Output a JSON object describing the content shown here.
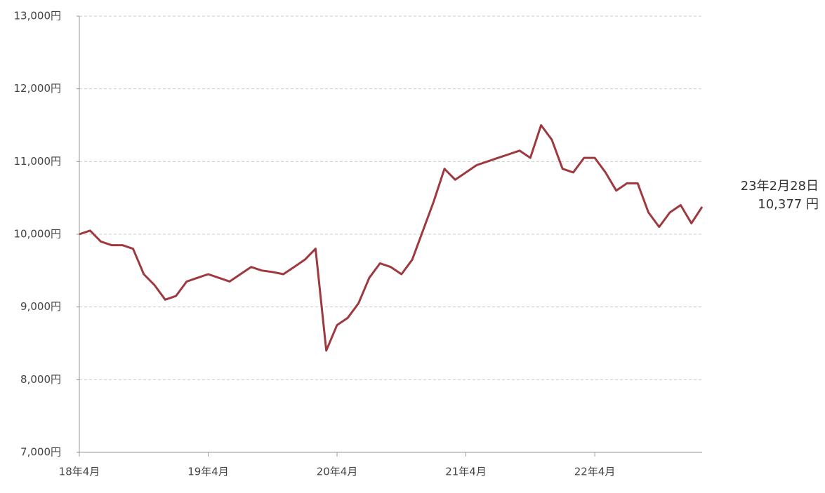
{
  "chart_data": {
    "type": "line",
    "categories": [
      "18年4月",
      null,
      null,
      null,
      null,
      null,
      null,
      null,
      null,
      null,
      null,
      null,
      "19年4月",
      null,
      null,
      null,
      null,
      null,
      null,
      null,
      null,
      null,
      null,
      null,
      "20年4月",
      null,
      null,
      null,
      null,
      null,
      null,
      null,
      null,
      null,
      null,
      null,
      "21年4月",
      null,
      null,
      null,
      null,
      null,
      null,
      null,
      null,
      null,
      null,
      null,
      "22年4月",
      null,
      null,
      null,
      null,
      null,
      null,
      null,
      null,
      null,
      null
    ],
    "values": [
      10000,
      10050,
      9900,
      9850,
      9850,
      9800,
      9450,
      9300,
      9100,
      9150,
      9350,
      9400,
      9450,
      9400,
      9350,
      9450,
      9550,
      9500,
      9480,
      9450,
      9550,
      9650,
      9800,
      8400,
      8750,
      8850,
      9050,
      9400,
      9600,
      9550,
      9450,
      9650,
      10050,
      10450,
      10900,
      10750,
      10850,
      10950,
      11000,
      11050,
      11100,
      11150,
      11050,
      11500,
      11300,
      10900,
      10850,
      11050,
      11050,
      10850,
      10600,
      10700,
      10700,
      10300,
      10100,
      10300,
      10400,
      10150,
      10377
    ],
    "value_labels": [
      null,
      null,
      null,
      null,
      null,
      null,
      null,
      null,
      null,
      null,
      null,
      null,
      null,
      null,
      null,
      null,
      null,
      null,
      null,
      null,
      null,
      null,
      null,
      null,
      null,
      null,
      null,
      null,
      null,
      null,
      null,
      null,
      null,
      null,
      null,
      null,
      null,
      null,
      null,
      null,
      null,
      null,
      null,
      null,
      null,
      null,
      null,
      null,
      null,
      null,
      null,
      null,
      null,
      null,
      null,
      null,
      null,
      null,
      "10,377 円"
    ],
    "annotation": "23年2月28日",
    "color": "#9e3a3f",
    "ylim": [
      7000,
      13000
    ],
    "yticks": [
      {
        "value": 7000,
        "label": "7,000円"
      },
      {
        "value": 8000,
        "label": "8,000円"
      },
      {
        "value": 9000,
        "label": "9,000円"
      },
      {
        "value": 10000,
        "label": "10,000円"
      },
      {
        "value": 11000,
        "label": "11,000円"
      },
      {
        "value": 12000,
        "label": "12,000円"
      },
      {
        "value": 13000,
        "label": "13,000円"
      }
    ],
    "grid": true
  }
}
